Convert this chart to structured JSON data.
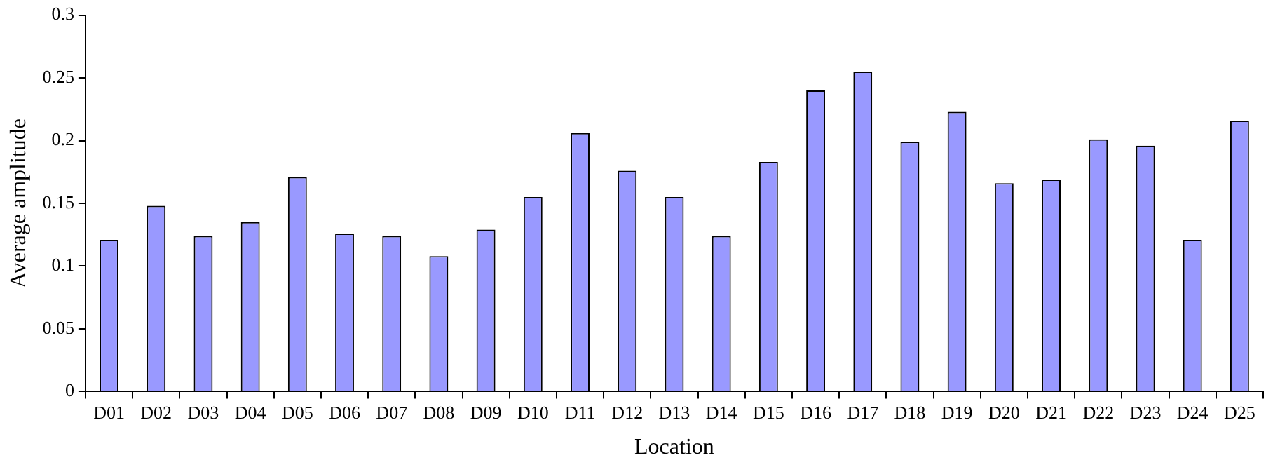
{
  "chart_data": {
    "type": "bar",
    "xlabel": "Location",
    "ylabel": "Average amplitude",
    "categories": [
      "D01",
      "D02",
      "D03",
      "D04",
      "D05",
      "D06",
      "D07",
      "D08",
      "D09",
      "D10",
      "D11",
      "D12",
      "D13",
      "D14",
      "D15",
      "D16",
      "D17",
      "D18",
      "D19",
      "D20",
      "D21",
      "D22",
      "D23",
      "D24",
      "D25"
    ],
    "values": [
      0.121,
      0.148,
      0.124,
      0.135,
      0.171,
      0.126,
      0.124,
      0.108,
      0.129,
      0.155,
      0.206,
      0.176,
      0.155,
      0.124,
      0.183,
      0.24,
      0.255,
      0.199,
      0.223,
      0.166,
      0.169,
      0.201,
      0.196,
      0.121,
      0.216
    ],
    "color": "#9999ff",
    "ylim": [
      0,
      0.3
    ],
    "yticks": [
      0,
      0.05,
      0.1,
      0.15,
      0.2,
      0.25,
      0.3
    ],
    "grid": false,
    "legend": false
  }
}
